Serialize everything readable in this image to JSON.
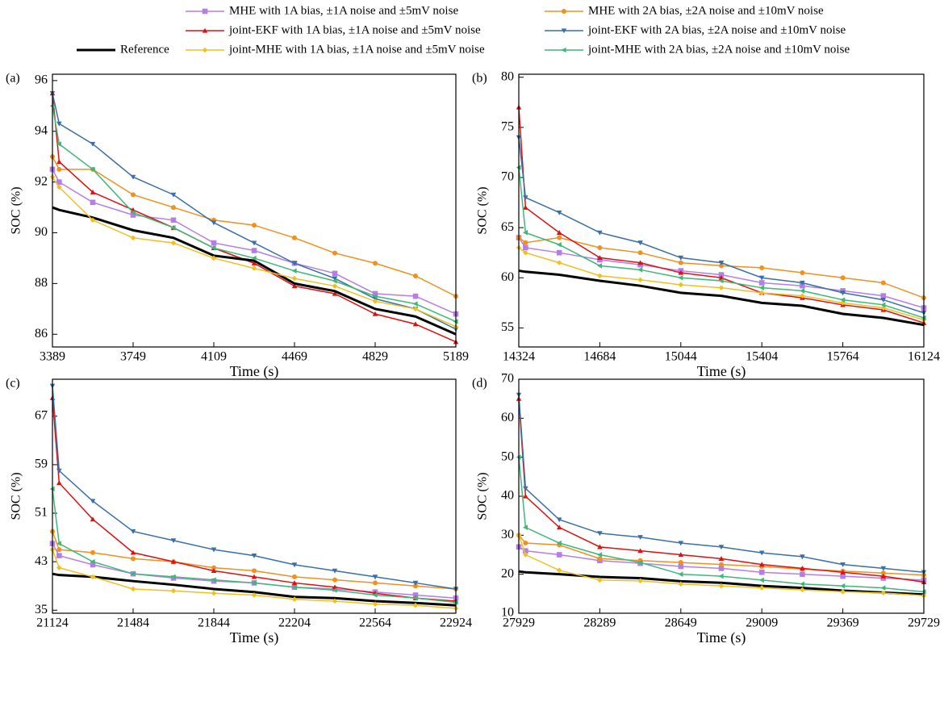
{
  "chart_data": [
    {
      "type": "line",
      "panel_label": "(a)",
      "xlabel": "Time (s)",
      "ylabel": "SOC (%)",
      "x": [
        3389,
        3419,
        3569,
        3749,
        3929,
        4109,
        4289,
        4469,
        4649,
        4829,
        5009,
        5189
      ],
      "xlim": [
        3389,
        5189
      ],
      "xticks": [
        3389,
        3749,
        4109,
        4469,
        4829,
        5189
      ],
      "ylim": [
        85.5,
        96.25
      ],
      "yticks": [
        86,
        88,
        90,
        92,
        94,
        96
      ],
      "series": [
        {
          "name": "MHE with 1A bias, ±1A noise and ±5mV noise",
          "color": "#b57ee6",
          "marker": "square",
          "values": [
            92.5,
            92,
            91.2,
            90.7,
            90.5,
            89.6,
            89.3,
            88.8,
            88.4,
            87.6,
            87.5,
            86.8
          ]
        },
        {
          "name": "MHE with 2A bias, ±2A noise and ±10mV noise",
          "color": "#f0901e",
          "marker": "circle",
          "values": [
            93,
            92.5,
            92.5,
            91.5,
            91,
            90.5,
            90.3,
            89.8,
            89.2,
            88.8,
            88.3,
            87.5
          ]
        },
        {
          "name": "joint-EKF with 1A bias, ±1A noise and ±5mV noise",
          "color": "#e01010",
          "marker": "triangle-up",
          "values": [
            95.5,
            92.8,
            91.6,
            90.9,
            90.2,
            89.4,
            88.8,
            87.9,
            87.6,
            86.8,
            86.4,
            85.7
          ]
        },
        {
          "name": "joint-EKF with 2A bias, ±2A noise and ±10mV noise",
          "color": "#3a6fa8",
          "marker": "triangle-down",
          "values": [
            95.5,
            94.3,
            93.5,
            92.2,
            91.5,
            90.4,
            89.6,
            88.8,
            88.2,
            87.4,
            87,
            86.2
          ]
        },
        {
          "name": "Reference",
          "color": "#000000",
          "marker": null,
          "values": [
            91,
            90.9,
            90.6,
            90.1,
            89.8,
            89.1,
            88.9,
            88,
            87.7,
            87,
            86.7,
            86
          ]
        },
        {
          "name": "joint-MHE with 1A bias, ±1A noise and ±5mV noise",
          "color": "#f0c020",
          "marker": "diamond",
          "values": [
            92.2,
            91.8,
            90.5,
            89.8,
            89.6,
            89,
            88.6,
            88.2,
            87.9,
            87.3,
            87,
            86.3
          ]
        },
        {
          "name": "joint-MHE with 2A bias, ±2A noise and ±10mV noise",
          "color": "#3cb878",
          "marker": "triangle-left",
          "values": [
            95,
            93.5,
            92.5,
            90.8,
            90.2,
            89.4,
            89,
            88.5,
            88.1,
            87.5,
            87.2,
            86.5
          ]
        }
      ]
    },
    {
      "type": "line",
      "panel_label": "(b)",
      "xlabel": "Time (s)",
      "ylabel": "SOC (%)",
      "x": [
        14324,
        14354,
        14504,
        14684,
        14864,
        15044,
        15224,
        15404,
        15584,
        15764,
        15944,
        16124
      ],
      "xlim": [
        14324,
        16124
      ],
      "xticks": [
        14324,
        14684,
        15044,
        15404,
        15764,
        16124
      ],
      "ylim": [
        53.1,
        80.3
      ],
      "yticks": [
        55,
        60,
        65,
        70,
        75,
        80
      ],
      "series": [
        {
          "color": "#b57ee6",
          "marker": "square",
          "values": [
            64,
            63,
            62.5,
            61.8,
            61.3,
            60.7,
            60.3,
            59.5,
            59.2,
            58.7,
            58.2,
            57
          ]
        },
        {
          "color": "#f0901e",
          "marker": "circle",
          "values": [
            64,
            63.5,
            64,
            63,
            62.5,
            61.5,
            61.2,
            61,
            60.5,
            60,
            59.5,
            58
          ]
        },
        {
          "color": "#e01010",
          "marker": "triangle-up",
          "values": [
            77,
            67,
            64.5,
            62,
            61.5,
            60.5,
            60,
            58.5,
            58,
            57.3,
            56.8,
            55.5
          ]
        },
        {
          "color": "#3a6fa8",
          "marker": "triangle-down",
          "values": [
            74,
            68,
            66.5,
            64.5,
            63.5,
            62,
            61.5,
            60,
            59.5,
            58.5,
            57.8,
            56.5
          ]
        },
        {
          "color": "#000000",
          "marker": null,
          "values": [
            60.7,
            60.6,
            60.3,
            59.7,
            59.2,
            58.5,
            58.2,
            57.5,
            57.2,
            56.4,
            56,
            55.3
          ]
        },
        {
          "color": "#f0c020",
          "marker": "diamond",
          "values": [
            63,
            62.5,
            61.5,
            60.2,
            59.8,
            59.3,
            59,
            58.5,
            58.2,
            57.5,
            57,
            55.8
          ]
        },
        {
          "color": "#3cb878",
          "marker": "triangle-left",
          "values": [
            71,
            64.5,
            63.3,
            61.2,
            60.8,
            60,
            59.7,
            59,
            58.7,
            57.8,
            57.3,
            56
          ]
        }
      ]
    },
    {
      "type": "line",
      "panel_label": "(c)",
      "xlabel": "Time (s)",
      "ylabel": "SOC (%)",
      "x": [
        21124,
        21154,
        21304,
        21484,
        21664,
        21844,
        22024,
        22204,
        22384,
        22564,
        22744,
        22924
      ],
      "xlim": [
        21124,
        22924
      ],
      "xticks": [
        21124,
        21484,
        21844,
        22204,
        22564,
        22924
      ],
      "ylim": [
        34.5,
        73.1
      ],
      "yticks": [
        35,
        43,
        51,
        59,
        67
      ],
      "series": [
        {
          "color": "#b57ee6",
          "marker": "square",
          "values": [
            46,
            44,
            42.5,
            41,
            40.3,
            39.8,
            39.5,
            38.8,
            38.5,
            38,
            37.5,
            37
          ]
        },
        {
          "color": "#f0901e",
          "marker": "circle",
          "values": [
            48,
            45,
            44.5,
            43.5,
            43,
            42,
            41.5,
            40.5,
            40,
            39.5,
            39,
            38.5
          ]
        },
        {
          "color": "#e01010",
          "marker": "triangle-up",
          "values": [
            70,
            56,
            50,
            44.5,
            43,
            41.5,
            40.5,
            39.5,
            38.8,
            37.8,
            37,
            36.5
          ]
        },
        {
          "color": "#3a6fa8",
          "marker": "triangle-down",
          "values": [
            72,
            58,
            53,
            48,
            46.5,
            45,
            44,
            42.5,
            41.5,
            40.5,
            39.5,
            38.5
          ]
        },
        {
          "color": "#000000",
          "marker": null,
          "values": [
            41,
            40.8,
            40.5,
            39.8,
            39.2,
            38.5,
            38,
            37.2,
            37,
            36.5,
            36.2,
            35.8
          ]
        },
        {
          "color": "#f0c020",
          "marker": "diamond",
          "values": [
            45,
            42,
            40.5,
            38.5,
            38.2,
            37.8,
            37.5,
            36.8,
            36.5,
            36,
            35.8,
            35.3
          ]
        },
        {
          "color": "#3cb878",
          "marker": "triangle-left",
          "values": [
            55,
            46,
            43,
            41,
            40.5,
            40,
            39.5,
            38.8,
            38.3,
            37.5,
            37,
            36.3
          ]
        }
      ]
    },
    {
      "type": "line",
      "panel_label": "(d)",
      "xlabel": "Time (s)",
      "ylabel": "SOC (%)",
      "x": [
        27929,
        27959,
        28109,
        28289,
        28469,
        28649,
        28829,
        29009,
        29189,
        29369,
        29549,
        29729
      ],
      "xlim": [
        27929,
        29729
      ],
      "xticks": [
        27929,
        28289,
        28649,
        29009,
        29369,
        29729
      ],
      "ylim": [
        10,
        70
      ],
      "yticks": [
        10,
        20,
        30,
        40,
        50,
        60,
        70
      ],
      "series": [
        {
          "color": "#b57ee6",
          "marker": "square",
          "values": [
            27,
            26,
            25,
            23.5,
            22.8,
            22,
            21.5,
            20.5,
            20,
            19.5,
            19,
            18.5
          ]
        },
        {
          "color": "#f0901e",
          "marker": "circle",
          "values": [
            30,
            28,
            27.5,
            24,
            23.5,
            23,
            22.5,
            22,
            21.3,
            20.8,
            20.3,
            19.8
          ]
        },
        {
          "color": "#e01010",
          "marker": "triangle-up",
          "values": [
            65,
            40,
            32,
            27,
            26,
            25,
            24,
            22.5,
            21.5,
            20.5,
            19.5,
            18
          ]
        },
        {
          "color": "#3a6fa8",
          "marker": "triangle-down",
          "values": [
            66,
            42,
            34,
            30.5,
            29.5,
            28,
            27,
            25.5,
            24.5,
            22.5,
            21.5,
            20.5
          ]
        },
        {
          "color": "#000000",
          "marker": null,
          "values": [
            20.7,
            20.5,
            20,
            19.3,
            19,
            18.2,
            17.8,
            17,
            16.5,
            15.8,
            15.3,
            14.8
          ]
        },
        {
          "color": "#f0c020",
          "marker": "diamond",
          "values": [
            30,
            25,
            21,
            18.5,
            18.3,
            17.5,
            17,
            16.5,
            16,
            15.5,
            15.2,
            14.5
          ]
        },
        {
          "color": "#3cb878",
          "marker": "triangle-left",
          "values": [
            50,
            32,
            28,
            25,
            23,
            20,
            19.5,
            18.5,
            17.5,
            17,
            16.5,
            15.5
          ]
        }
      ]
    }
  ]
}
